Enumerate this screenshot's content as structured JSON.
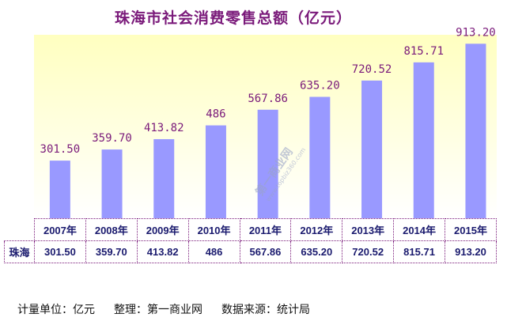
{
  "chart_data": {
    "type": "bar",
    "title": "珠海市社会消费零售总额（亿元）",
    "categories": [
      "2007年",
      "2008年",
      "2009年",
      "2010年",
      "2011年",
      "2012年",
      "2013年",
      "2014年",
      "2015年"
    ],
    "series": [
      {
        "name": "珠海",
        "values": [
          301.5,
          359.7,
          413.82,
          486,
          567.86,
          635.2,
          720.52,
          815.71,
          913.2
        ]
      }
    ],
    "value_labels": [
      "301.50",
      "359.70",
      "413.82",
      "486",
      "567.86",
      "635.20",
      "720.52",
      "815.71",
      "913.20"
    ],
    "ylim": [
      0,
      960
    ],
    "grid": false,
    "legend": "table-below"
  },
  "table": {
    "row_label": "珠海",
    "values": [
      "301.50",
      "359.70",
      "413.82",
      "486",
      "567.86",
      "635.20",
      "720.52",
      "815.71",
      "913.20"
    ]
  },
  "footer": {
    "unit": "计量单位：亿元",
    "editor": "整理：第一商业网",
    "source": "数据来源：统计局"
  },
  "watermark": {
    "text": "第一商业网",
    "sub": "www.topbiz360.com"
  },
  "colors": {
    "bar": "#9999ff",
    "title": "#7a1a7a",
    "value_label": "#7a1a7a",
    "plot_bg_top": "#ffffc8",
    "plot_bg_bottom": "#ffffff"
  }
}
